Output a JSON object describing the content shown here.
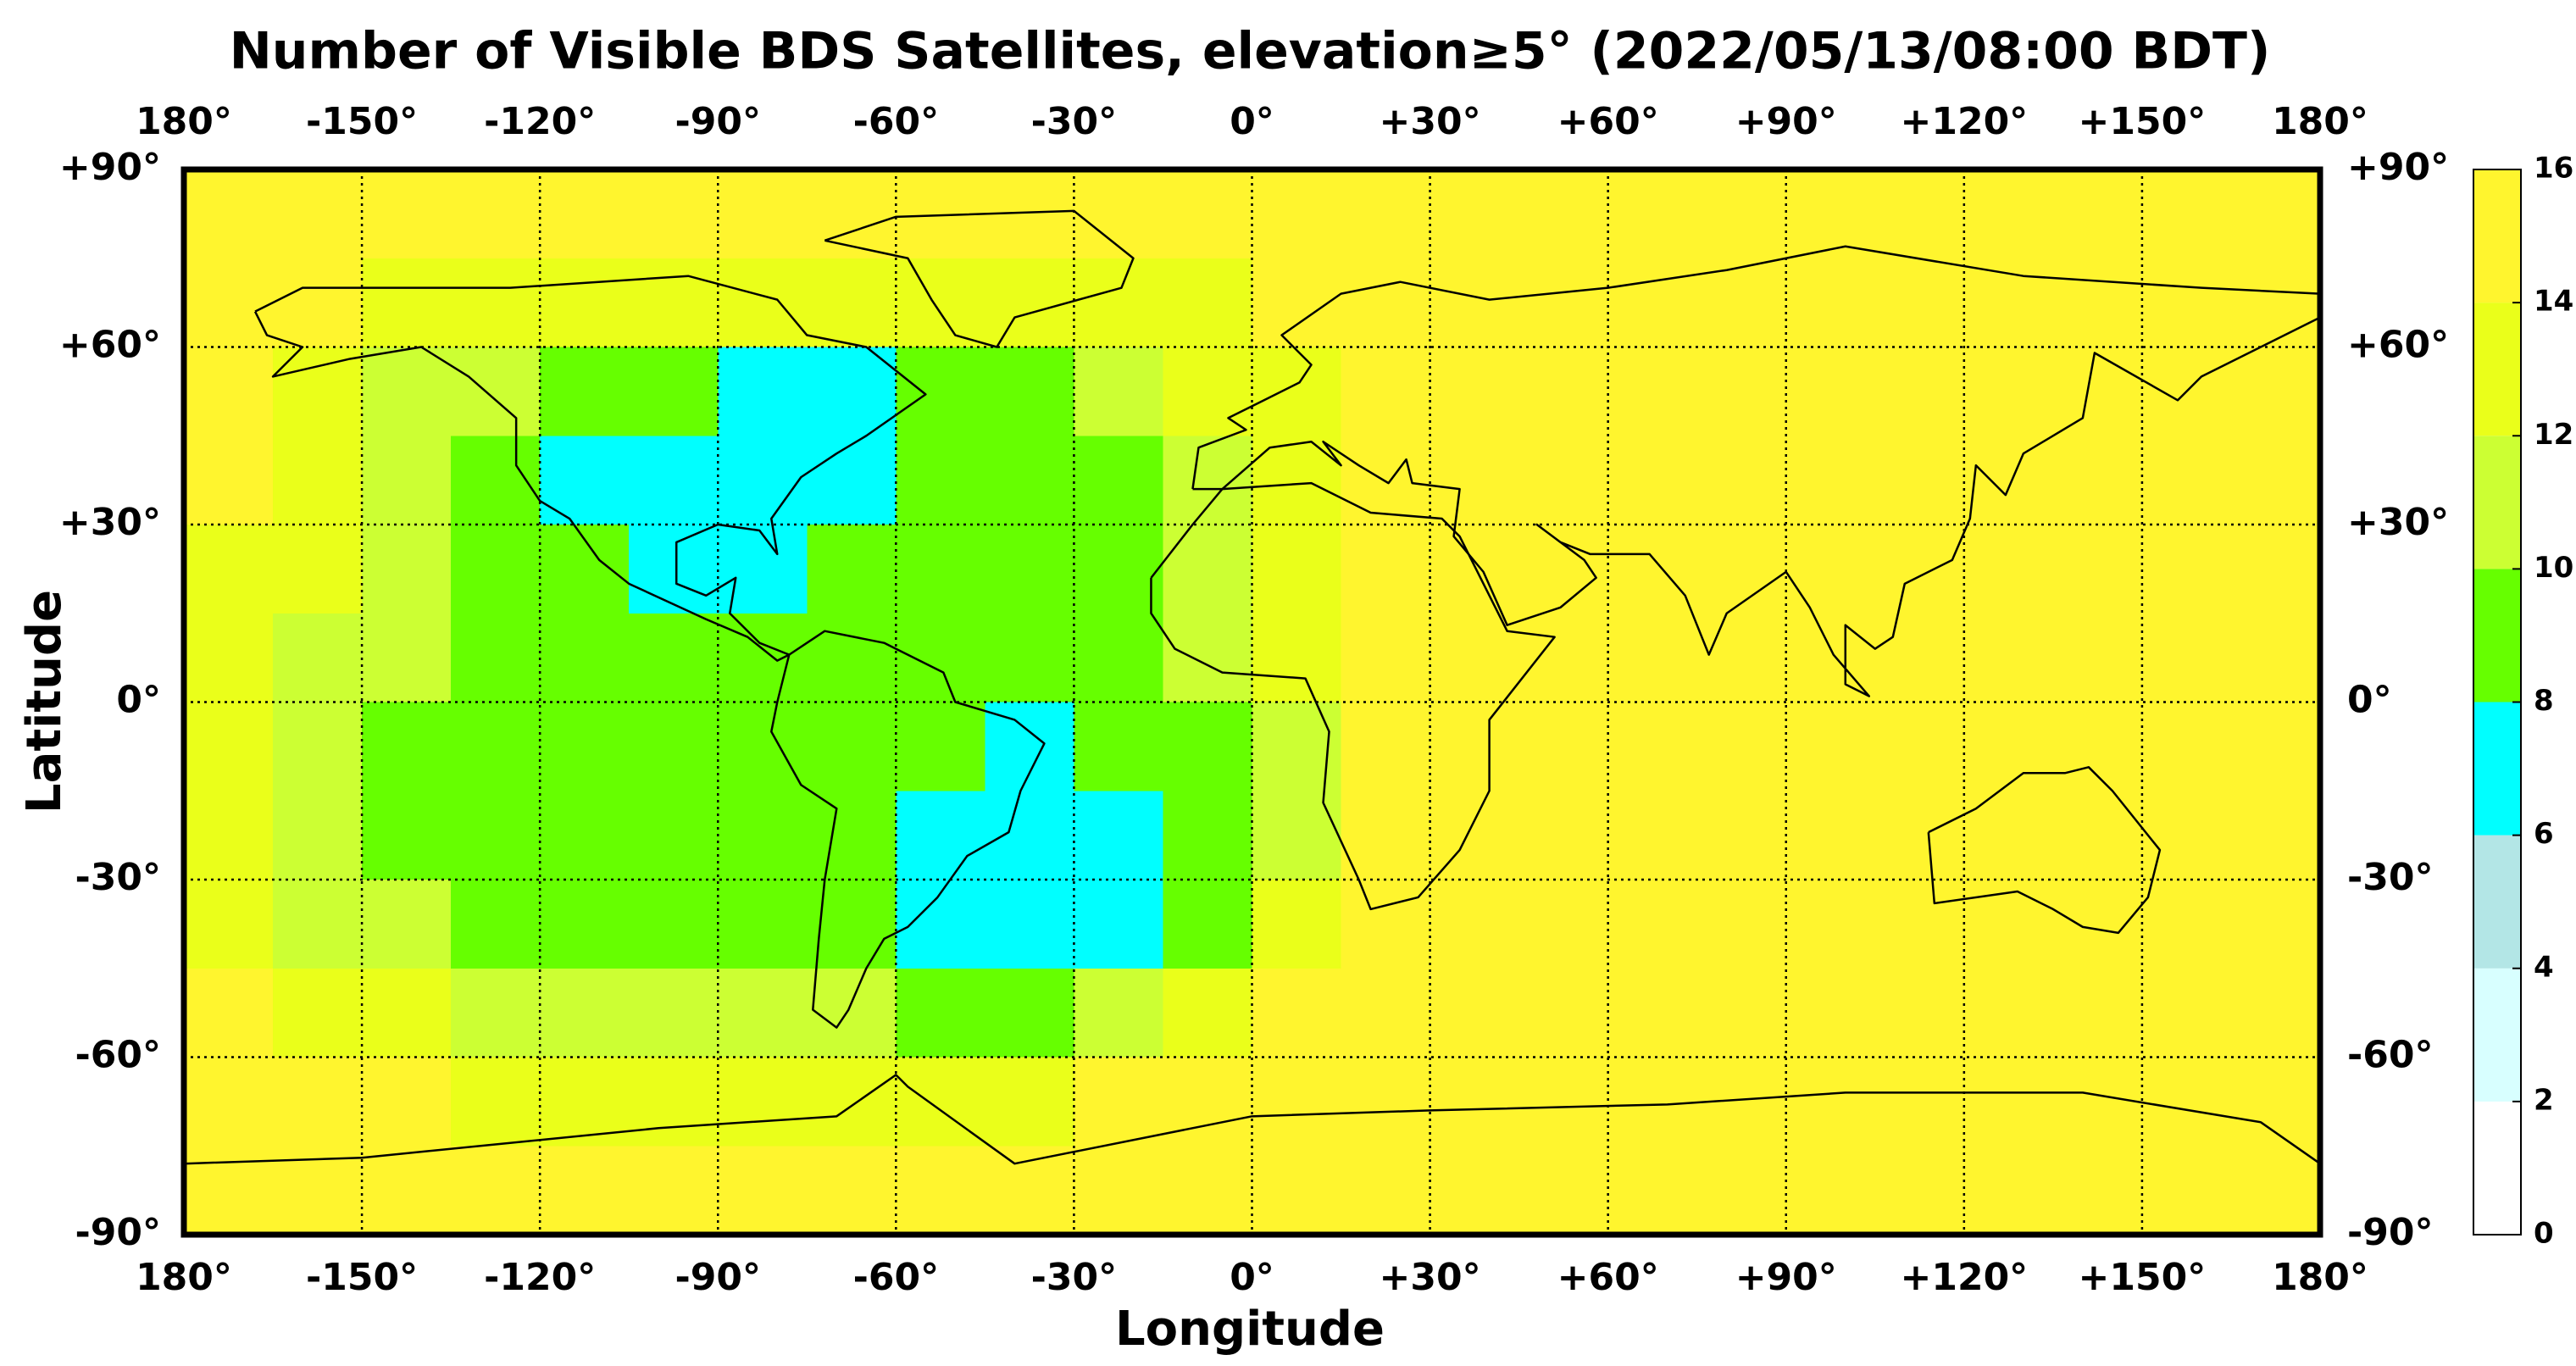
{
  "chart_data": {
    "type": "map-heatmap",
    "title": "Number of Visible BDS Satellites, elevation≥5° (2022/05/13/08:00 BDT)",
    "xlabel": "Longitude",
    "ylabel": "Latitude",
    "xlim": [
      -180,
      180
    ],
    "ylim": [
      -90,
      90
    ],
    "xticks": [
      {
        "value": -180,
        "label": "180°"
      },
      {
        "value": -150,
        "label": "-150°"
      },
      {
        "value": -120,
        "label": "-120°"
      },
      {
        "value": -90,
        "label": "-90°"
      },
      {
        "value": -60,
        "label": "-60°"
      },
      {
        "value": -30,
        "label": "-30°"
      },
      {
        "value": 0,
        "label": "0°"
      },
      {
        "value": 30,
        "label": "+30°"
      },
      {
        "value": 60,
        "label": "+60°"
      },
      {
        "value": 90,
        "label": "+90°"
      },
      {
        "value": 120,
        "label": "+120°"
      },
      {
        "value": 150,
        "label": "+150°"
      },
      {
        "value": 180,
        "label": "180°"
      }
    ],
    "yticks": [
      {
        "value": 90,
        "label": "+90°"
      },
      {
        "value": 60,
        "label": "+60°"
      },
      {
        "value": 30,
        "label": "+30°"
      },
      {
        "value": 0,
        "label": "0°"
      },
      {
        "value": -30,
        "label": "-30°"
      },
      {
        "value": -60,
        "label": "-60°"
      },
      {
        "value": -90,
        "label": "-90°"
      }
    ],
    "grid": true,
    "lon_edges": [
      -180,
      -165,
      -150,
      -135,
      -120,
      -105,
      -90,
      -75,
      -60,
      -45,
      -30,
      -15,
      0,
      15,
      30,
      45,
      60,
      75,
      90,
      105,
      120,
      135,
      150,
      165,
      180
    ],
    "lat_edges": [
      90,
      75,
      60,
      45,
      30,
      15,
      0,
      -15,
      -30,
      -45,
      -60,
      -75,
      -90
    ],
    "z": [
      [
        15,
        15,
        15,
        15,
        15,
        15,
        15,
        15,
        15,
        15,
        15,
        15,
        15,
        15,
        15,
        15,
        15,
        15,
        15,
        15,
        15,
        15,
        15,
        15
      ],
      [
        15,
        15,
        13,
        13,
        13,
        13,
        13,
        13,
        13,
        13,
        13,
        13,
        15,
        15,
        15,
        15,
        15,
        15,
        15,
        15,
        15,
        15,
        15,
        15
      ],
      [
        15,
        13,
        11,
        11,
        9,
        9,
        7,
        7,
        9,
        9,
        11,
        13,
        13,
        15,
        15,
        15,
        15,
        15,
        15,
        15,
        15,
        15,
        15,
        15
      ],
      [
        15,
        13,
        11,
        9,
        7,
        7,
        7,
        7,
        9,
        9,
        9,
        11,
        13,
        15,
        15,
        15,
        15,
        15,
        15,
        15,
        15,
        15,
        15,
        15
      ],
      [
        13,
        13,
        11,
        9,
        9,
        7,
        7,
        9,
        9,
        9,
        9,
        11,
        13,
        15,
        15,
        15,
        15,
        15,
        15,
        15,
        15,
        15,
        15,
        15
      ],
      [
        13,
        11,
        11,
        9,
        9,
        9,
        9,
        9,
        9,
        9,
        9,
        11,
        13,
        15,
        15,
        15,
        15,
        15,
        15,
        15,
        15,
        15,
        15,
        15
      ],
      [
        13,
        11,
        9,
        9,
        9,
        9,
        9,
        9,
        9,
        7,
        9,
        9,
        11,
        15,
        15,
        15,
        15,
        15,
        15,
        15,
        15,
        15,
        15,
        15
      ],
      [
        13,
        11,
        9,
        9,
        9,
        9,
        9,
        9,
        7,
        7,
        7,
        9,
        11,
        15,
        15,
        15,
        15,
        15,
        15,
        15,
        15,
        15,
        15,
        15
      ],
      [
        13,
        11,
        11,
        9,
        9,
        9,
        9,
        9,
        7,
        7,
        7,
        9,
        13,
        15,
        15,
        15,
        15,
        15,
        15,
        15,
        15,
        15,
        15,
        15
      ],
      [
        15,
        13,
        13,
        11,
        11,
        11,
        11,
        11,
        9,
        9,
        11,
        13,
        15,
        15,
        15,
        15,
        15,
        15,
        15,
        15,
        15,
        15,
        15,
        15
      ],
      [
        15,
        15,
        15,
        13,
        13,
        13,
        13,
        13,
        13,
        13,
        15,
        15,
        15,
        15,
        15,
        15,
        15,
        15,
        15,
        15,
        15,
        15,
        15,
        15
      ],
      [
        15,
        15,
        15,
        15,
        15,
        15,
        15,
        15,
        15,
        15,
        15,
        15,
        15,
        15,
        15,
        15,
        15,
        15,
        15,
        15,
        15,
        15,
        15,
        15
      ]
    ],
    "clim": [
      0,
      16
    ],
    "cticks": [
      0,
      2,
      4,
      6,
      8,
      10,
      12,
      14,
      16
    ],
    "colors": [
      "#ffffff",
      "#d8ffff",
      "#b3e6e6",
      "#00ffff",
      "#66ff00",
      "#ccff33",
      "#eaff1a",
      "#fff52e"
    ]
  }
}
